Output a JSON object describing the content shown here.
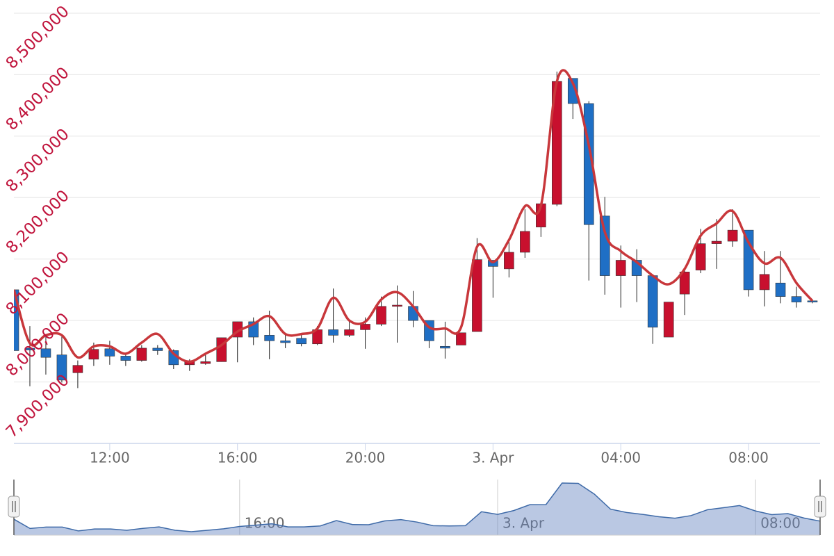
{
  "chart_data": {
    "type": "candlestick",
    "x": [
      9,
      9.5,
      10,
      10.5,
      11,
      11.5,
      12,
      12.5,
      13,
      13.5,
      14,
      14.5,
      15,
      15.5,
      16,
      16.5,
      17,
      17.5,
      18,
      18.5,
      19,
      19.5,
      20,
      20.5,
      21,
      21.5,
      22,
      22.5,
      23,
      23.5,
      24,
      24.5,
      25,
      25.5,
      26,
      26.5,
      27,
      27.5,
      28,
      28.5,
      29,
      29.5,
      30,
      30.5,
      31,
      31.5,
      32,
      32.5,
      33,
      33.5,
      34
    ],
    "series": [
      {
        "type": "candlestick",
        "up_color": "#c8102e",
        "down_color": "#1f6fc5",
        "open": [
          8050000,
          7955000,
          7954000,
          7944000,
          7915000,
          7937000,
          7954000,
          7942000,
          7935000,
          7955000,
          7951000,
          7928000,
          7930000,
          7933000,
          7973000,
          7998000,
          7976000,
          7967000,
          7971000,
          7962000,
          7985000,
          7976000,
          7985000,
          7994000,
          8023000,
          8023000,
          8000000,
          7958000,
          7960000,
          7982000,
          8098000,
          8084000,
          8111000,
          8152000,
          8189000,
          8394000,
          8353000,
          8170000,
          8073000,
          8098000,
          8073000,
          7973000,
          8043000,
          8082000,
          8125000,
          8129000,
          8147000,
          8050000,
          8061000,
          8039000,
          8032000
        ],
        "high": [
          8050000,
          7991000,
          7974000,
          7974000,
          7935000,
          7964000,
          7967000,
          7946000,
          7960000,
          7960000,
          7953000,
          7937000,
          7946000,
          7972000,
          7998000,
          8005000,
          8016000,
          7980000,
          7978000,
          7991000,
          8052000,
          8000000,
          8005000,
          8039000,
          8057000,
          8048000,
          8000000,
          7998000,
          7980000,
          8134000,
          8098000,
          8131000,
          8181000,
          8190000,
          8405000,
          8394000,
          8357000,
          8201000,
          8122000,
          8116000,
          8075000,
          8030000,
          8086000,
          8149000,
          8165000,
          8181000,
          8147000,
          8113000,
          8113000,
          8055000,
          8032000
        ],
        "low": [
          7951000,
          7893000,
          7912000,
          7899000,
          7890000,
          7926000,
          7928000,
          7926000,
          7933000,
          7944000,
          7921000,
          7918000,
          7928000,
          7933000,
          7932000,
          7960000,
          7937000,
          7955000,
          7958000,
          7960000,
          7964000,
          7973000,
          7954000,
          7991000,
          7964000,
          7989000,
          7955000,
          7938000,
          7960000,
          7982000,
          8037000,
          8070000,
          8102000,
          8136000,
          8186000,
          8328000,
          8065000,
          8042000,
          8021000,
          8030000,
          7962000,
          7973000,
          8009000,
          8077000,
          8084000,
          8120000,
          8039000,
          8023000,
          8028000,
          8021000,
          8028000
        ],
        "close": [
          7951000,
          7952000,
          7940000,
          7903000,
          7927000,
          7953000,
          7942000,
          7935000,
          7955000,
          7951000,
          7928000,
          7933000,
          7933000,
          7972000,
          7998000,
          7973000,
          7967000,
          7964000,
          7962000,
          7985000,
          7976000,
          7985000,
          7994000,
          8023000,
          8025000,
          8000000,
          7967000,
          7955000,
          7980000,
          8099000,
          8088000,
          8111000,
          8145000,
          8190000,
          8389000,
          8353000,
          8156000,
          8073000,
          8098000,
          8073000,
          7989000,
          8030000,
          8079000,
          8125000,
          8129000,
          8147000,
          8050000,
          8075000,
          8039000,
          8030000,
          8030000
        ]
      },
      {
        "type": "spline",
        "color": "#c8373b",
        "values": [
          8050000,
          7963000,
          7976000,
          7976000,
          7940000,
          7958000,
          7958000,
          7946000,
          7964000,
          7978000,
          7946000,
          7933000,
          7946000,
          7960000,
          7982000,
          7994000,
          8007000,
          7978000,
          7978000,
          7987000,
          8037000,
          8000000,
          7998000,
          8034000,
          8046000,
          8023000,
          7989000,
          7987000,
          7989000,
          8120000,
          8095000,
          8131000,
          8186000,
          8187000,
          8389000,
          8386000,
          8285000,
          8144000,
          8113000,
          8095000,
          8073000,
          8059000,
          8084000,
          8138000,
          8158000,
          8178000,
          8127000,
          8093000,
          8102000,
          8061000,
          8032000
        ]
      }
    ],
    "xlim": [
      9,
      34.24
    ],
    "xticks": [
      {
        "value": 12,
        "label": "12:00"
      },
      {
        "value": 16,
        "label": "16:00"
      },
      {
        "value": 20,
        "label": "20:00"
      },
      {
        "value": 24,
        "label": "3. Apr"
      },
      {
        "value": 28,
        "label": "04:00"
      },
      {
        "value": 32,
        "label": "08:00"
      }
    ],
    "ylim": [
      7800000,
      8500000
    ],
    "yticks": [
      {
        "value": 7900000,
        "label": "7,900,000"
      },
      {
        "value": 8000000,
        "label": "8,000,000"
      },
      {
        "value": 8100000,
        "label": "8,100,000"
      },
      {
        "value": 8200000,
        "label": "8,200,000"
      },
      {
        "value": 8300000,
        "label": "8,300,000"
      },
      {
        "value": 8400000,
        "label": "8,400,000"
      },
      {
        "value": 8500000,
        "label": "8,500,000"
      }
    ],
    "ytick_color": "#c0143c",
    "grid": true
  }
}
